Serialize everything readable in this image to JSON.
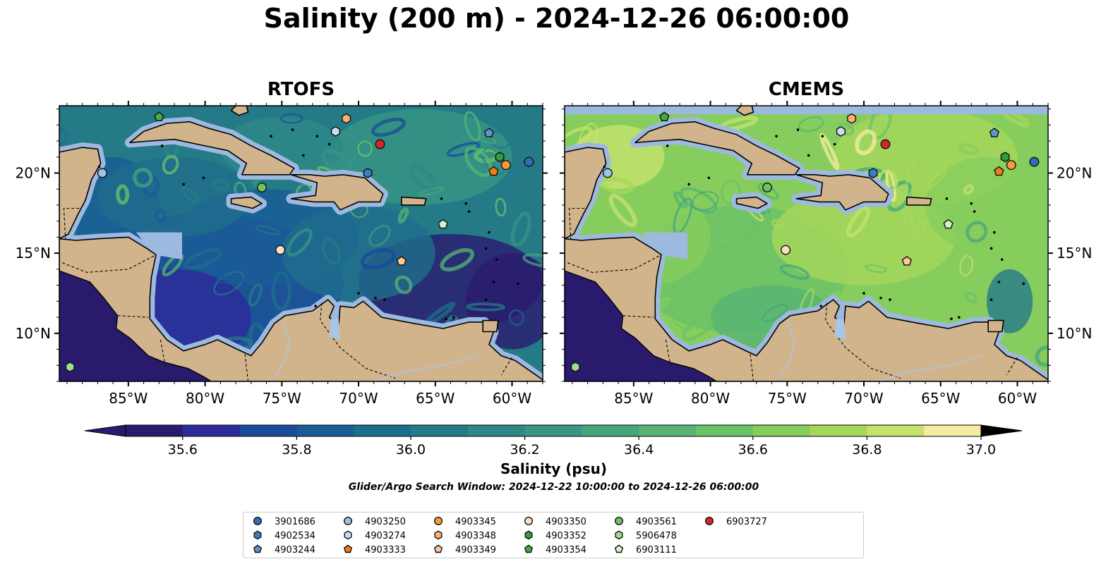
{
  "figure": {
    "title": "Salinity (200 m) - 2024-12-26 06:00:00",
    "caption": "Glider/Argo Search Window: 2024-12-22 10:00:00 to 2024-12-26 06:00:00"
  },
  "panels": [
    {
      "title": "RTOFS",
      "model": "rtofs"
    },
    {
      "title": "CMEMS",
      "model": "cmems"
    }
  ],
  "colors": {
    "land": "#d2b48c",
    "shelf": "#9db9e0",
    "river": "#a8c6e8",
    "colormap": [
      "#2a1a6e",
      "#2c2b98",
      "#1a4a9a",
      "#195c97",
      "#1f6d8c",
      "#257a87",
      "#2e8886",
      "#379684",
      "#45a67d",
      "#57b473",
      "#6cc267",
      "#87cd5e",
      "#a6d75b",
      "#c6e26d",
      "#f5eca0"
    ]
  },
  "chart_data": {
    "type": "map-contourf",
    "variable": "Salinity",
    "depth": "200 m",
    "time": "2024-12-26 06:00:00",
    "extent": {
      "lon": [
        -89.5,
        -58.0
      ],
      "lat": [
        7.0,
        24.2
      ]
    },
    "xticks": [
      {
        "value": -85,
        "label": "85°W"
      },
      {
        "value": -80,
        "label": "80°W"
      },
      {
        "value": -75,
        "label": "75°W"
      },
      {
        "value": -70,
        "label": "70°W"
      },
      {
        "value": -65,
        "label": "65°W"
      },
      {
        "value": -60,
        "label": "60°W"
      }
    ],
    "yticks": [
      {
        "value": 10,
        "label": "10°N"
      },
      {
        "value": 15,
        "label": "15°N"
      },
      {
        "value": 20,
        "label": "20°N"
      }
    ],
    "colorbar": {
      "label": "Salinity (psu)",
      "min": 35.5,
      "max": 37.0,
      "step": 0.1,
      "extend": "both",
      "ticks": [
        {
          "value": 35.6,
          "label": "35.6"
        },
        {
          "value": 35.8,
          "label": "35.8"
        },
        {
          "value": 36.0,
          "label": "36.0"
        },
        {
          "value": 36.2,
          "label": "36.2"
        },
        {
          "value": 36.4,
          "label": "36.4"
        },
        {
          "value": 36.6,
          "label": "36.6"
        },
        {
          "value": 36.8,
          "label": "36.8"
        },
        {
          "value": 37.0,
          "label": "37.0"
        }
      ]
    },
    "series": [
      {
        "name": "3901686",
        "marker": "circle",
        "color": "#2b6fb6",
        "lon": -58.9,
        "lat": 20.7
      },
      {
        "name": "4902534",
        "marker": "hexagon",
        "color": "#3a7ec2",
        "lon": -69.4,
        "lat": 20.0
      },
      {
        "name": "4903244",
        "marker": "pentagon",
        "color": "#5b94cd",
        "lon": -61.5,
        "lat": 22.5
      },
      {
        "name": "4903250",
        "marker": "circle",
        "color": "#9cc4e8",
        "lon": -86.7,
        "lat": 20.0
      },
      {
        "name": "4903274",
        "marker": "hexagon",
        "color": "#c8def2",
        "lon": -71.5,
        "lat": 22.6
      },
      {
        "name": "4903333",
        "marker": "pentagon",
        "color": "#f07f10",
        "lon": -61.2,
        "lat": 20.1
      },
      {
        "name": "4903345",
        "marker": "circle",
        "color": "#fb9a3c",
        "lon": -60.4,
        "lat": 20.5
      },
      {
        "name": "4903348",
        "marker": "hexagon",
        "color": "#fdb072",
        "lon": -70.8,
        "lat": 23.4
      },
      {
        "name": "4903349",
        "marker": "pentagon",
        "color": "#fdc79a",
        "lon": -67.2,
        "lat": 14.5
      },
      {
        "name": "4903350",
        "marker": "circle",
        "color": "#fde0c4",
        "lon": -75.1,
        "lat": 15.2
      },
      {
        "name": "4903352",
        "marker": "hexagon",
        "color": "#2f9e3b",
        "lon": -60.8,
        "lat": 21.0
      },
      {
        "name": "4903354",
        "marker": "pentagon",
        "color": "#43ad43",
        "lon": -83.0,
        "lat": 23.5
      },
      {
        "name": "4903561",
        "marker": "circle",
        "color": "#6dc45e",
        "lon": -76.3,
        "lat": 19.1
      },
      {
        "name": "5906478",
        "marker": "hexagon",
        "color": "#9fde8c",
        "lon": -88.8,
        "lat": 7.9
      },
      {
        "name": "6903111",
        "marker": "pentagon",
        "color": "#d3f2c8",
        "lon": -64.5,
        "lat": 16.8
      },
      {
        "name": "6903727",
        "marker": "circle",
        "color": "#d62728",
        "lon": -68.6,
        "lat": 21.8
      }
    ]
  }
}
